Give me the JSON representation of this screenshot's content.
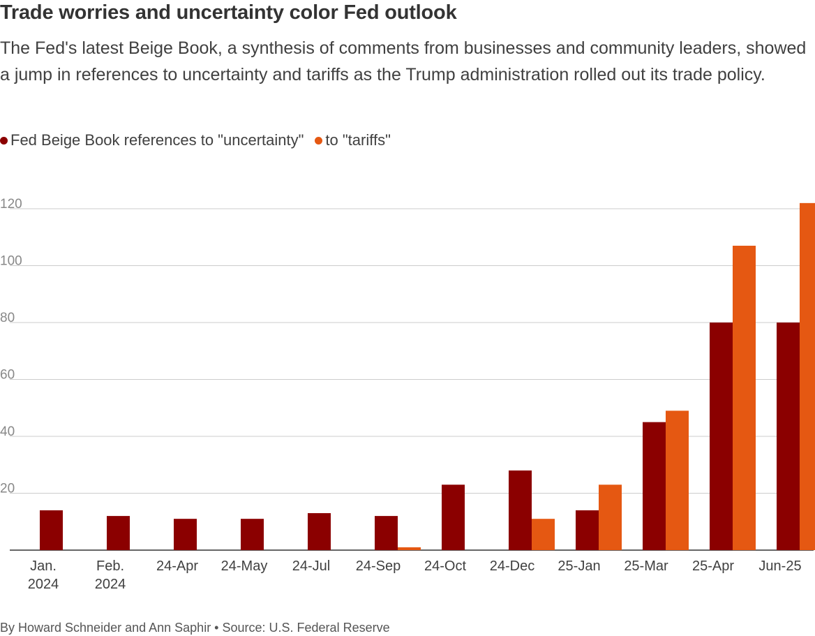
{
  "chart_data": {
    "type": "bar",
    "title": "Trade worries and uncertainty color Fed outlook",
    "subtitle": "The Fed's latest Beige Book, a synthesis of comments from businesses and community leaders, showed a jump in references to uncertainty and tariffs as the Trump administration rolled out its trade policy.",
    "categories": [
      [
        "Jan.",
        "2024"
      ],
      [
        "Feb.",
        "2024"
      ],
      [
        "24-Apr"
      ],
      [
        "24-May"
      ],
      [
        "24-Jul"
      ],
      [
        "24-Sep"
      ],
      [
        "24-Oct"
      ],
      [
        "24-Dec"
      ],
      [
        "25-Jan"
      ],
      [
        "25-Mar"
      ],
      [
        "25-Apr"
      ],
      [
        "Jun-25"
      ]
    ],
    "series": [
      {
        "name": "Fed Beige Book references to \"uncertainty\"",
        "color": "#8b0000",
        "values": [
          14,
          12,
          11,
          11,
          13,
          12,
          23,
          28,
          14,
          45,
          80,
          80
        ]
      },
      {
        "name": "to \"tariffs\"",
        "color": "#e55812",
        "values": [
          0,
          0,
          0,
          0,
          0,
          1,
          0,
          11,
          23,
          49,
          107,
          122
        ]
      }
    ],
    "yticks": [
      20,
      40,
      60,
      80,
      100,
      120
    ],
    "ylim": [
      0,
      120
    ],
    "grid": true,
    "legend_position": "top-left"
  },
  "byline": "By Howard Schneider and Ann Saphir • Source: U.S. Federal Reserve"
}
